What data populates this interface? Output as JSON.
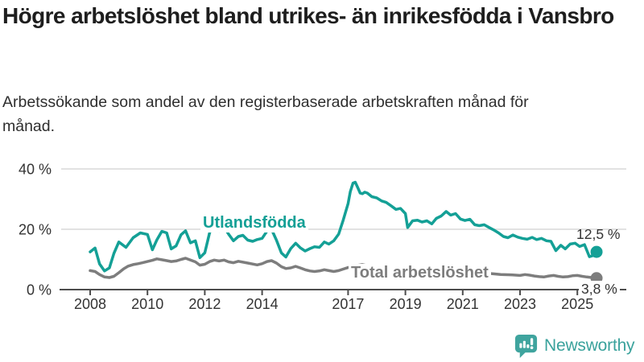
{
  "header": {
    "title": "Högre arbetslöshet bland utrikes- än inrikesfödda i Vansbro",
    "subtitle": "Arbetssökande som andel av den registerbaserade arbetskraften månad för månad."
  },
  "chart_data": {
    "type": "line",
    "title": "Högre arbetslöshet bland utrikes- än inrikesfödda i Vansbro",
    "subtitle": "Arbetssökande som andel av den registerbaserade arbetskraften månad för månad.",
    "xlabel": "",
    "ylabel": "",
    "unit": "%",
    "ylim": [
      0,
      40
    ],
    "xlim": [
      2008,
      2025.9
    ],
    "grid": "horizontal",
    "legend_position": "inline-labels",
    "yticks": {
      "values": [
        0,
        20,
        40
      ],
      "labels": [
        "0 %",
        "20 %",
        "40 %"
      ]
    },
    "xticks": {
      "values": [
        2008,
        2010,
        2012,
        2014,
        2017,
        2019,
        2021,
        2023,
        2025
      ],
      "labels": [
        "2008",
        "2010",
        "2012",
        "2014",
        "2017",
        "2019",
        "2021",
        "2023",
        "2025"
      ]
    },
    "series": [
      {
        "name": "Utlandsfödda",
        "color": "#14a096",
        "end_label": "12,5 %",
        "end_value": 12.5,
        "points": [
          [
            2008.0,
            12.5
          ],
          [
            2008.17,
            13.8
          ],
          [
            2008.33,
            8.5
          ],
          [
            2008.5,
            6.2
          ],
          [
            2008.67,
            7.2
          ],
          [
            2008.83,
            12.0
          ],
          [
            2009.0,
            15.8
          ],
          [
            2009.25,
            14.0
          ],
          [
            2009.5,
            17.2
          ],
          [
            2009.75,
            18.8
          ],
          [
            2010.0,
            18.3
          ],
          [
            2010.17,
            13.2
          ],
          [
            2010.33,
            16.5
          ],
          [
            2010.5,
            19.3
          ],
          [
            2010.67,
            18.8
          ],
          [
            2010.83,
            13.5
          ],
          [
            2011.0,
            14.5
          ],
          [
            2011.17,
            18.2
          ],
          [
            2011.33,
            19.5
          ],
          [
            2011.5,
            15.5
          ],
          [
            2011.67,
            16.2
          ],
          [
            2011.83,
            10.6
          ],
          [
            2012.0,
            12.2
          ],
          [
            2012.17,
            19.0
          ],
          [
            2012.33,
            20.6
          ],
          [
            2012.5,
            19.4
          ],
          [
            2012.67,
            20.8
          ],
          [
            2012.83,
            18.4
          ],
          [
            2013.0,
            16.2
          ],
          [
            2013.17,
            17.6
          ],
          [
            2013.33,
            18.0
          ],
          [
            2013.5,
            16.4
          ],
          [
            2013.67,
            16.0
          ],
          [
            2013.83,
            16.6
          ],
          [
            2014.0,
            17.0
          ],
          [
            2014.17,
            19.4
          ],
          [
            2014.33,
            20.0
          ],
          [
            2014.5,
            16.4
          ],
          [
            2014.67,
            12.2
          ],
          [
            2014.83,
            10.8
          ],
          [
            2015.0,
            13.6
          ],
          [
            2015.17,
            15.4
          ],
          [
            2015.33,
            13.9
          ],
          [
            2015.5,
            12.8
          ],
          [
            2015.67,
            13.6
          ],
          [
            2015.83,
            14.2
          ],
          [
            2016.0,
            14.0
          ],
          [
            2016.17,
            15.8
          ],
          [
            2016.33,
            15.1
          ],
          [
            2016.5,
            16.2
          ],
          [
            2016.67,
            18.4
          ],
          [
            2016.83,
            23.0
          ],
          [
            2017.0,
            28.5
          ],
          [
            2017.08,
            32.5
          ],
          [
            2017.17,
            35.3
          ],
          [
            2017.25,
            35.6
          ],
          [
            2017.33,
            34.0
          ],
          [
            2017.42,
            32.0
          ],
          [
            2017.5,
            31.8
          ],
          [
            2017.58,
            32.3
          ],
          [
            2017.67,
            32.0
          ],
          [
            2017.83,
            30.8
          ],
          [
            2018.0,
            30.4
          ],
          [
            2018.17,
            29.4
          ],
          [
            2018.33,
            28.9
          ],
          [
            2018.5,
            27.8
          ],
          [
            2018.67,
            26.6
          ],
          [
            2018.83,
            26.9
          ],
          [
            2019.0,
            25.2
          ],
          [
            2019.08,
            20.6
          ],
          [
            2019.25,
            22.8
          ],
          [
            2019.42,
            23.0
          ],
          [
            2019.58,
            22.4
          ],
          [
            2019.75,
            22.8
          ],
          [
            2019.92,
            21.8
          ],
          [
            2020.08,
            23.6
          ],
          [
            2020.25,
            24.4
          ],
          [
            2020.42,
            25.9
          ],
          [
            2020.58,
            24.7
          ],
          [
            2020.75,
            25.2
          ],
          [
            2020.92,
            23.4
          ],
          [
            2021.08,
            22.9
          ],
          [
            2021.25,
            23.3
          ],
          [
            2021.42,
            21.5
          ],
          [
            2021.58,
            21.2
          ],
          [
            2021.75,
            21.5
          ],
          [
            2021.92,
            20.6
          ],
          [
            2022.08,
            19.8
          ],
          [
            2022.25,
            18.8
          ],
          [
            2022.42,
            17.6
          ],
          [
            2022.58,
            17.2
          ],
          [
            2022.75,
            18.1
          ],
          [
            2022.92,
            17.4
          ],
          [
            2023.08,
            17.0
          ],
          [
            2023.25,
            16.7
          ],
          [
            2023.42,
            17.3
          ],
          [
            2023.58,
            16.6
          ],
          [
            2023.75,
            17.0
          ],
          [
            2023.92,
            16.2
          ],
          [
            2024.08,
            16.0
          ],
          [
            2024.25,
            12.9
          ],
          [
            2024.42,
            14.7
          ],
          [
            2024.58,
            13.5
          ],
          [
            2024.75,
            15.1
          ],
          [
            2024.92,
            15.4
          ],
          [
            2025.08,
            14.3
          ],
          [
            2025.25,
            14.9
          ],
          [
            2025.42,
            10.9
          ],
          [
            2025.58,
            11.4
          ],
          [
            2025.67,
            12.5
          ]
        ]
      },
      {
        "name": "Total arbetslöshet",
        "color": "#7d7d7d",
        "end_label": "3,8 %",
        "end_value": 3.8,
        "points": [
          [
            2008.0,
            6.3
          ],
          [
            2008.17,
            6.0
          ],
          [
            2008.33,
            5.0
          ],
          [
            2008.5,
            4.2
          ],
          [
            2008.67,
            4.0
          ],
          [
            2008.83,
            4.4
          ],
          [
            2009.0,
            5.6
          ],
          [
            2009.17,
            6.9
          ],
          [
            2009.33,
            7.8
          ],
          [
            2009.5,
            8.3
          ],
          [
            2009.67,
            8.6
          ],
          [
            2009.83,
            8.9
          ],
          [
            2010.0,
            9.3
          ],
          [
            2010.17,
            9.7
          ],
          [
            2010.33,
            10.2
          ],
          [
            2010.5,
            9.9
          ],
          [
            2010.67,
            9.6
          ],
          [
            2010.83,
            9.3
          ],
          [
            2011.0,
            9.5
          ],
          [
            2011.17,
            10.0
          ],
          [
            2011.33,
            10.4
          ],
          [
            2011.5,
            9.8
          ],
          [
            2011.67,
            9.2
          ],
          [
            2011.83,
            8.1
          ],
          [
            2012.0,
            8.4
          ],
          [
            2012.17,
            9.3
          ],
          [
            2012.33,
            9.8
          ],
          [
            2012.5,
            9.5
          ],
          [
            2012.67,
            9.8
          ],
          [
            2012.83,
            9.2
          ],
          [
            2013.0,
            8.9
          ],
          [
            2013.17,
            9.4
          ],
          [
            2013.5,
            8.8
          ],
          [
            2013.83,
            8.2
          ],
          [
            2014.0,
            8.6
          ],
          [
            2014.17,
            9.3
          ],
          [
            2014.33,
            9.6
          ],
          [
            2014.5,
            8.8
          ],
          [
            2014.67,
            7.6
          ],
          [
            2014.83,
            7.0
          ],
          [
            2015.0,
            7.2
          ],
          [
            2015.17,
            7.7
          ],
          [
            2015.33,
            7.2
          ],
          [
            2015.5,
            6.6
          ],
          [
            2015.67,
            6.2
          ],
          [
            2015.83,
            6.0
          ],
          [
            2016.0,
            6.2
          ],
          [
            2016.17,
            6.6
          ],
          [
            2016.33,
            6.3
          ],
          [
            2016.5,
            6.0
          ],
          [
            2016.67,
            6.3
          ],
          [
            2016.83,
            6.8
          ],
          [
            2017.0,
            7.3
          ],
          [
            2017.25,
            7.9
          ],
          [
            2017.5,
            8.3
          ],
          [
            2017.75,
            7.8
          ],
          [
            2018.0,
            7.5
          ],
          [
            2018.33,
            7.3
          ],
          [
            2018.67,
            6.9
          ],
          [
            2019.0,
            6.5
          ],
          [
            2019.33,
            6.3
          ],
          [
            2019.67,
            6.0
          ],
          [
            2020.0,
            6.0
          ],
          [
            2020.33,
            6.4
          ],
          [
            2020.67,
            6.2
          ],
          [
            2021.0,
            6.1
          ],
          [
            2021.33,
            6.3
          ],
          [
            2021.67,
            5.8
          ],
          [
            2022.0,
            5.3
          ],
          [
            2022.33,
            5.0
          ],
          [
            2022.67,
            4.9
          ],
          [
            2023.0,
            4.7
          ],
          [
            2023.17,
            5.0
          ],
          [
            2023.33,
            4.8
          ],
          [
            2023.5,
            4.5
          ],
          [
            2023.67,
            4.3
          ],
          [
            2023.83,
            4.2
          ],
          [
            2024.0,
            4.5
          ],
          [
            2024.17,
            4.7
          ],
          [
            2024.33,
            4.4
          ],
          [
            2024.5,
            4.2
          ],
          [
            2024.67,
            4.3
          ],
          [
            2024.83,
            4.6
          ],
          [
            2025.0,
            4.7
          ],
          [
            2025.17,
            4.4
          ],
          [
            2025.33,
            4.2
          ],
          [
            2025.5,
            4.0
          ],
          [
            2025.67,
            3.8
          ]
        ]
      }
    ],
    "colors": {
      "axis": "#4c4c4c",
      "grid": "#d9d9d9",
      "tick_text": "#333333"
    }
  },
  "footer": {
    "logo_text": "Newsworthy",
    "logo_color": "#3aa29c",
    "logo_icon": "bar-chart-speech-bubble"
  }
}
